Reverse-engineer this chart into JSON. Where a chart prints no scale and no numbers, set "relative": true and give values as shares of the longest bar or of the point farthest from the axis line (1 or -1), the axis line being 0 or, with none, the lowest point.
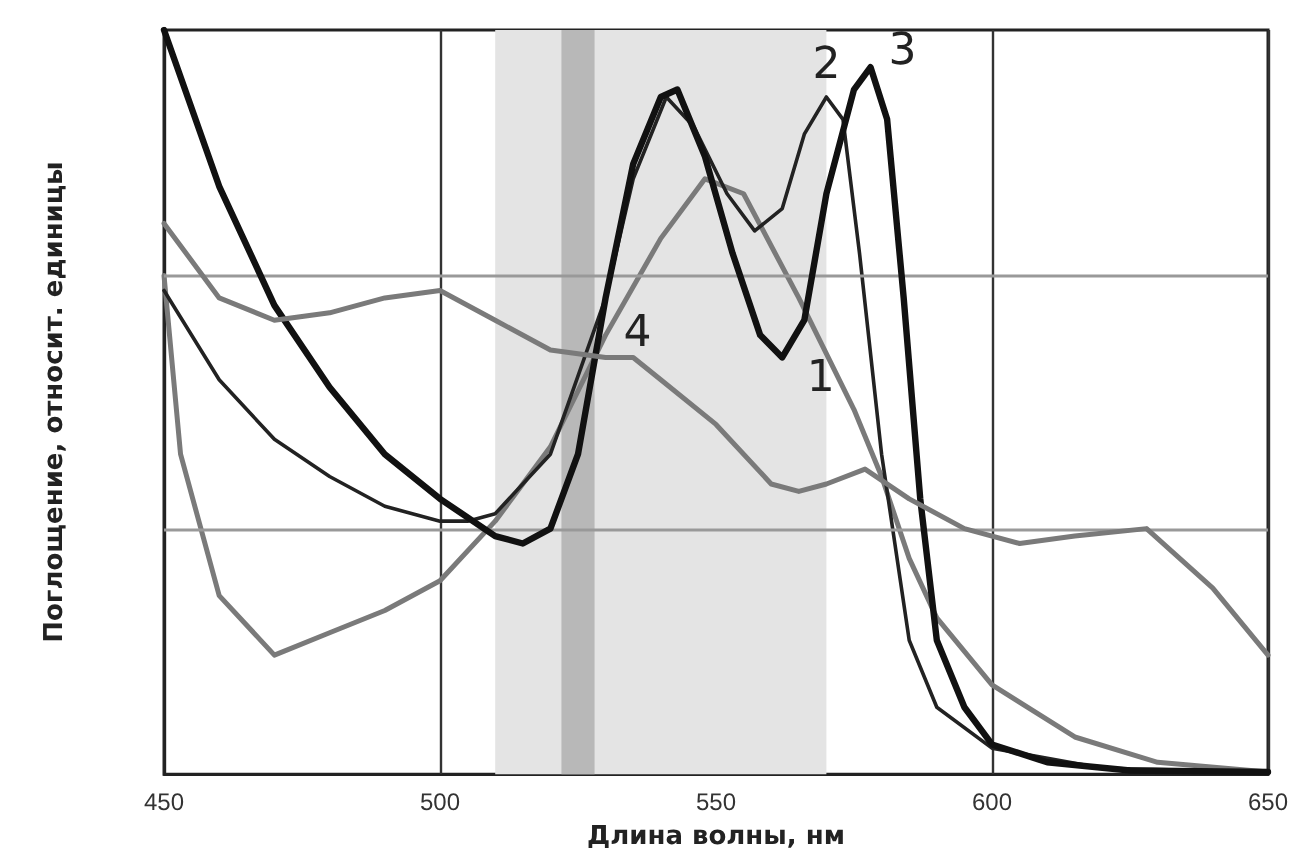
{
  "chart_data": {
    "type": "line",
    "xlabel": "Длина волны, нм",
    "ylabel": "Поглощение, относит. единицы",
    "relative": true,
    "xlim": [
      450,
      650
    ],
    "xticks": [
      450,
      500,
      550,
      600,
      650
    ],
    "grid": "x",
    "ref_lines": [
      {
        "axis": "y",
        "value": 0.33,
        "color": "#999999"
      },
      {
        "axis": "y",
        "value": 0.667,
        "color": "#999999"
      }
    ],
    "legend": false,
    "marker": "none",
    "line_style": "solid",
    "bands": [
      {
        "axis": "x",
        "from": 510,
        "to": 570,
        "color": "#e4e4e4"
      },
      {
        "axis": "x",
        "from": 522,
        "to": 528,
        "color": "#b8b8b8"
      }
    ],
    "series": [
      {
        "name": "1",
        "color": "#7a7a7a",
        "x": [
          450,
          453,
          460,
          470,
          480,
          490,
          500,
          510,
          520,
          530,
          540,
          548,
          555,
          565,
          575,
          580,
          585,
          590,
          600,
          615,
          630,
          650
        ],
        "values": [
          0.67,
          0.43,
          0.24,
          0.16,
          0.19,
          0.22,
          0.26,
          0.34,
          0.44,
          0.59,
          0.72,
          0.8,
          0.78,
          0.64,
          0.49,
          0.4,
          0.29,
          0.21,
          0.12,
          0.05,
          0.016,
          0.003
        ]
      },
      {
        "name": "2",
        "color": "#222222",
        "x": [
          450,
          460,
          470,
          480,
          490,
          500,
          505,
          510,
          520,
          530,
          535,
          541,
          546,
          552,
          557,
          562,
          566,
          570,
          573,
          576,
          580,
          585,
          590,
          600,
          620,
          650
        ],
        "values": [
          0.65,
          0.53,
          0.45,
          0.4,
          0.36,
          0.34,
          0.34,
          0.35,
          0.43,
          0.64,
          0.8,
          0.91,
          0.87,
          0.78,
          0.73,
          0.76,
          0.86,
          0.91,
          0.88,
          0.7,
          0.43,
          0.18,
          0.09,
          0.035,
          0.008,
          0.003
        ]
      },
      {
        "name": "3",
        "color": "#111111",
        "x": [
          450,
          460,
          470,
          480,
          490,
          500,
          510,
          515,
          520,
          525,
          530,
          535,
          540,
          543,
          548,
          553,
          558,
          562,
          566,
          570,
          575,
          578,
          581,
          584,
          587,
          590,
          595,
          600,
          610,
          625,
          650
        ],
        "values": [
          1.0,
          0.79,
          0.63,
          0.52,
          0.43,
          0.37,
          0.32,
          0.31,
          0.33,
          0.43,
          0.64,
          0.82,
          0.91,
          0.92,
          0.83,
          0.7,
          0.59,
          0.56,
          0.61,
          0.78,
          0.92,
          0.95,
          0.88,
          0.64,
          0.37,
          0.18,
          0.09,
          0.04,
          0.016,
          0.005,
          0.003
        ]
      },
      {
        "name": "4",
        "color": "#7a7a7a",
        "x": [
          450,
          460,
          470,
          480,
          490,
          500,
          510,
          520,
          530,
          535,
          540,
          550,
          560,
          565,
          570,
          577,
          585,
          595,
          605,
          615,
          628,
          640,
          650
        ],
        "values": [
          0.74,
          0.64,
          0.61,
          0.62,
          0.64,
          0.65,
          0.61,
          0.57,
          0.56,
          0.56,
          0.53,
          0.47,
          0.39,
          0.38,
          0.39,
          0.41,
          0.37,
          0.33,
          0.31,
          0.32,
          0.33,
          0.25,
          0.16
        ]
      }
    ]
  }
}
